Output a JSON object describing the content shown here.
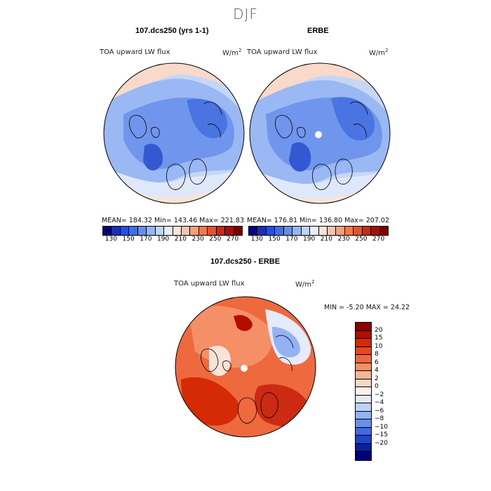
{
  "season": "DJF",
  "panels": {
    "model": {
      "title": "107.dcs250 (yrs 1-1)",
      "variable": "TOA upward LW flux",
      "units": "W/m",
      "units_exp": "2",
      "stats": "MEAN= 184.32  Min= 143.46  Max= 221.83"
    },
    "obs": {
      "title": "ERBE",
      "variable": "TOA upward LW flux",
      "units": "W/m",
      "units_exp": "2",
      "stats": "MEAN= 176.81  Min= 136.80  Max= 207.02"
    },
    "diff": {
      "title": "107.dcs250 - ERBE",
      "variable": "TOA upward LW flux",
      "units": "W/m",
      "units_exp": "2",
      "stats": "MIN =   -5.20 MAX =  24.22"
    }
  },
  "colorbar_abs": {
    "labels": [
      "130",
      "150",
      "170",
      "190",
      "210",
      "230",
      "250",
      "270"
    ],
    "colors": [
      "#00008b",
      "#1a2fb8",
      "#2a4fd6",
      "#3e6ee8",
      "#6390f0",
      "#93b4f5",
      "#c0d4f8",
      "#e8eefb",
      "#fbe3d6",
      "#f8c3a8",
      "#f5a07a",
      "#f07a4e",
      "#e5532b",
      "#cc2a12",
      "#a50f05",
      "#7a0000"
    ]
  },
  "colorbar_diff": {
    "labels": [
      "20",
      "15",
      "10",
      "8",
      "6",
      "4",
      "2",
      "0",
      "−2",
      "−4",
      "−6",
      "−8",
      "−10",
      "−15",
      "−20"
    ],
    "colors": [
      "#8b0000",
      "#b30d00",
      "#d42a06",
      "#e8471c",
      "#f0673b",
      "#f48f68",
      "#f7b595",
      "#fad8c5",
      "#fdf1ea",
      "#e4ecfb",
      "#bcd0f8",
      "#93b2f4",
      "#6890ee",
      "#3e6ae6",
      "#1f44cc",
      "#0a1f9e",
      "#00007a"
    ]
  }
}
